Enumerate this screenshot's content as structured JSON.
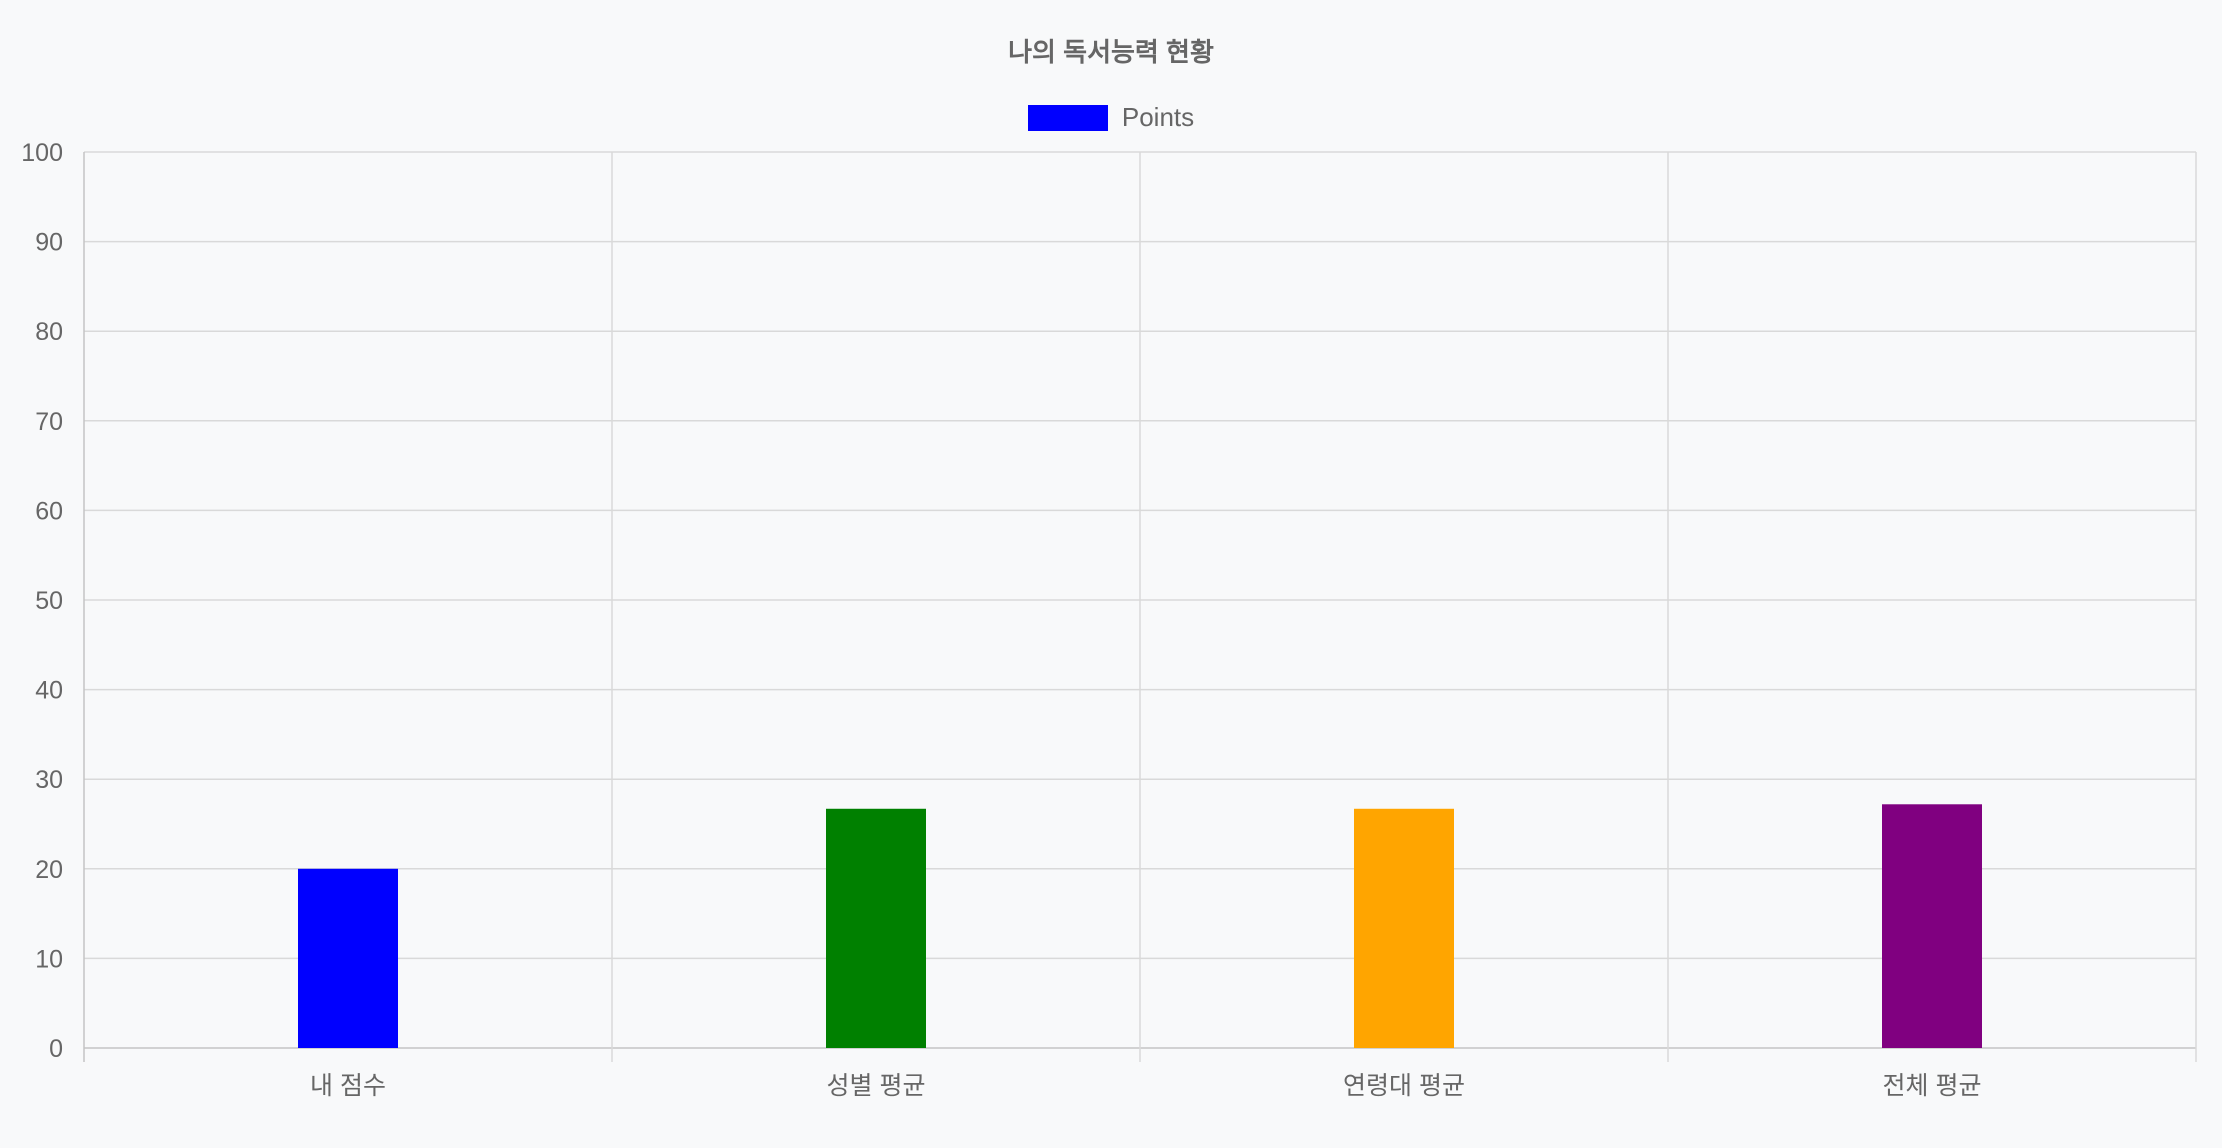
{
  "chart_data": {
    "type": "bar",
    "title": "나의 독서능력 현황",
    "categories": [
      "내 점수",
      "성별 평균",
      "연령대 평균",
      "전체 평균"
    ],
    "series": [
      {
        "name": "Points",
        "values": [
          20,
          26.7,
          26.7,
          27.2
        ],
        "colors": [
          "#0000ff",
          "#008000",
          "#ffa500",
          "#800080"
        ]
      }
    ],
    "ylim": [
      0,
      100
    ],
    "yticks": [
      "0",
      "10",
      "20",
      "30",
      "40",
      "50",
      "60",
      "70",
      "80",
      "90",
      "100"
    ],
    "grid": true,
    "legend_position": "top",
    "legend_color": "#0000ff",
    "gridline_color": "#d9d9d9",
    "text_color": "#666666"
  }
}
